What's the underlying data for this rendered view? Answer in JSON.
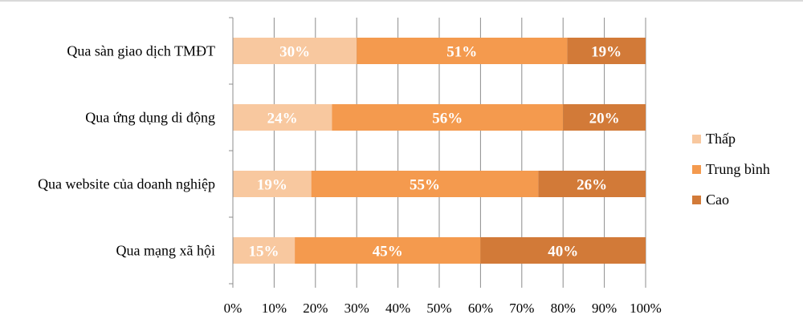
{
  "colors": {
    "thap": "#f8c89f",
    "trung_binh": "#f49a4e",
    "cao": "#d27a38",
    "grid": "#8c8c8c"
  },
  "chart_data": {
    "type": "bar",
    "orientation": "horizontal",
    "stacked": true,
    "percent": true,
    "categories": [
      "Qua sàn giao dịch TMĐT",
      "Qua ứng dụng di động",
      "Qua website của doanh nghiệp",
      "Qua mạng xã hội"
    ],
    "series": [
      {
        "name": "Thấp",
        "values": [
          30,
          24,
          19,
          15
        ],
        "labels": [
          "30%",
          "24%",
          "19%",
          "15%"
        ]
      },
      {
        "name": "Trung bình",
        "values": [
          51,
          56,
          55,
          45
        ],
        "labels": [
          "51%",
          "56%",
          "55%",
          "45%"
        ]
      },
      {
        "name": "Cao",
        "values": [
          19,
          20,
          26,
          40
        ],
        "labels": [
          "19%",
          "20%",
          "26%",
          "40%"
        ]
      }
    ],
    "xlim": [
      0,
      100
    ],
    "xticks": [
      "0%",
      "10%",
      "20%",
      "30%",
      "40%",
      "50%",
      "60%",
      "70%",
      "80%",
      "90%",
      "100%"
    ],
    "grid": true,
    "legend": "right"
  }
}
